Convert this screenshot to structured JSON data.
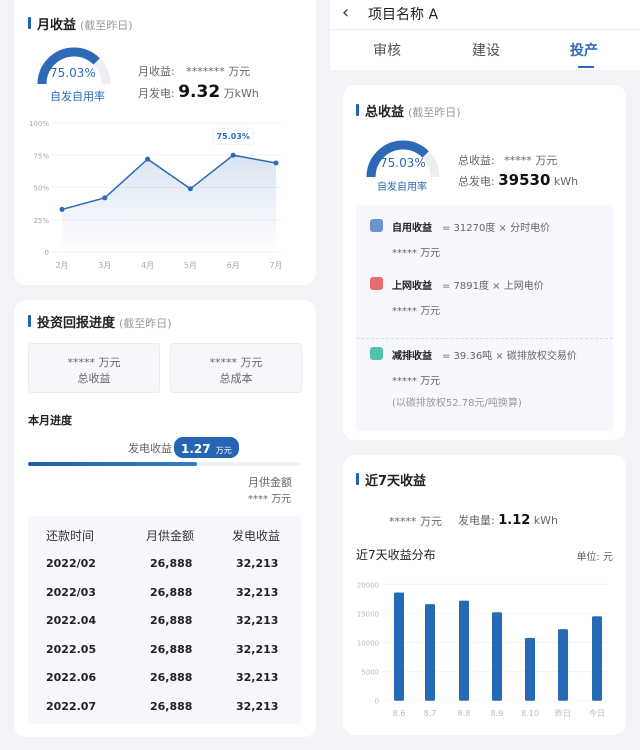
{
  "monthly": {
    "title": "月收益",
    "subtitle": "(截至昨日)",
    "gauge_value": "75.03%",
    "gauge_fraction": 0.7503,
    "gauge_label": "自发自用率",
    "income_label": "月收益:",
    "income_value": "*******",
    "income_unit": "万元",
    "power_label": "月发电:",
    "power_value": "9.32",
    "power_unit": "万kWh",
    "chart_data": {
      "type": "area",
      "categories": [
        "2月",
        "3月",
        "4月",
        "5月",
        "6月",
        "7月"
      ],
      "values": [
        33,
        42,
        72,
        49,
        75.03,
        69
      ],
      "yticks": [
        "0",
        "25%",
        "50%",
        "75%",
        "100%"
      ],
      "ylim": [
        0,
        100
      ],
      "tooltip": "75.03%",
      "color": "#2c6ab8"
    }
  },
  "invest": {
    "title": "投资回报进度",
    "subtitle": "(截至昨日)",
    "total_income_value": "*****",
    "total_income_unit": "万元",
    "total_income_label": "总收益",
    "total_cost_value": "*****",
    "total_cost_unit": "万元",
    "total_cost_label": "总成本",
    "month_progress": "本月进度",
    "gen_label": "发电收益",
    "gen_value": "1.27",
    "gen_unit": "万元",
    "progress": 0.62,
    "supply_label": "月供金额",
    "supply_value": "****",
    "supply_unit": "万元",
    "table": {
      "headers": [
        "还款时间",
        "月供金额",
        "发电收益"
      ],
      "rows": [
        [
          "2022/02",
          "26,888",
          "32,213"
        ],
        [
          "2022/03",
          "26,888",
          "32,213"
        ],
        [
          "2022.04",
          "26,888",
          "32,213"
        ],
        [
          "2022.05",
          "26,888",
          "32,213"
        ],
        [
          "2022.06",
          "26,888",
          "32,213"
        ],
        [
          "2022.07",
          "26,888",
          "32,213"
        ]
      ]
    }
  },
  "header": {
    "title": "项目名称 A",
    "tabs": [
      "审核",
      "建设",
      "投产"
    ],
    "active_tab": 2
  },
  "total": {
    "title": "总收益",
    "subtitle": "(截至昨日)",
    "gauge_value": "75.03%",
    "gauge_fraction": 0.7503,
    "gauge_label": "自发自用率",
    "income_label": "总收益:",
    "income_value": "*****",
    "income_unit": "万元",
    "power_label": "总发电:",
    "power_value": "39530",
    "power_unit": "kWh",
    "items": [
      {
        "icon": "wallet-icon",
        "name": "自用收益",
        "formula": "= 31270度 × 分时电价",
        "value": "*****",
        "unit": "万元"
      },
      {
        "icon": "grid-user-icon",
        "name": "上网收益",
        "formula": "= 7891度 × 上网电价",
        "value": "*****",
        "unit": "万元"
      },
      {
        "icon": "bulb-icon",
        "name": "减排收益",
        "formula": "= 39.36吨 × 碳排放权交易价",
        "value": "*****",
        "unit": "万元",
        "note": "(以碳排放权52.78元/吨换算)"
      }
    ]
  },
  "week": {
    "title": "近7天收益",
    "income_value": "*****",
    "income_unit": "万元",
    "power_label": "发电量:",
    "power_value": "1.12",
    "power_unit": "kWh",
    "dist_title": "近7天收益分布",
    "unit_label": "单位: 元",
    "chart_data": {
      "type": "bar",
      "categories": [
        "8.6",
        "8.7",
        "8.8",
        "8.9",
        "8.10",
        "昨日",
        "今日"
      ],
      "values": [
        18600,
        16600,
        17200,
        15200,
        10800,
        12300,
        14500
      ],
      "yticks": [
        "0",
        "5000",
        "10000",
        "15000",
        "20000"
      ],
      "ylim": [
        0,
        20000
      ],
      "color": "#246ab5"
    }
  }
}
